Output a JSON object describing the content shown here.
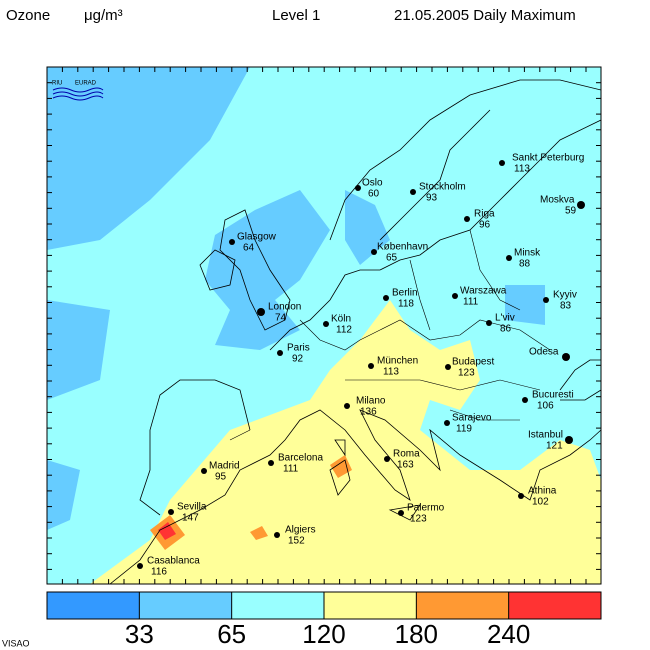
{
  "header": {
    "quantity": "Ozone",
    "unit": "μg/m³",
    "level": "Level  1",
    "date": "21.05.2005 Daily Maximum"
  },
  "logo": [
    "RIU",
    "EURAD"
  ],
  "footer": "VISAO",
  "legend": {
    "colors": [
      "#3399ff",
      "#66ccff",
      "#99ffff",
      "#ffff99",
      "#ff9933",
      "#ff3333"
    ],
    "ticks": [
      33,
      65,
      120,
      180,
      240
    ]
  },
  "cities": [
    {
      "name": "Sankt Peterburg",
      "value": 113
    },
    {
      "name": "Moskva",
      "value": 59
    },
    {
      "name": "Oslo",
      "value": 60
    },
    {
      "name": "Stockholm",
      "value": 93
    },
    {
      "name": "Riga",
      "value": 96
    },
    {
      "name": "Glasgow",
      "value": 64
    },
    {
      "name": "København",
      "value": 65
    },
    {
      "name": "Minsk",
      "value": 88
    },
    {
      "name": "Berlin",
      "value": 118
    },
    {
      "name": "Warszawa",
      "value": 111
    },
    {
      "name": "Kyyiv",
      "value": 83
    },
    {
      "name": "London",
      "value": 74
    },
    {
      "name": "Köln",
      "value": 112
    },
    {
      "name": "L'viv",
      "value": 86
    },
    {
      "name": "Paris",
      "value": 92
    },
    {
      "name": "Odesa"
    },
    {
      "name": "München",
      "value": 113
    },
    {
      "name": "Budapest",
      "value": 123
    },
    {
      "name": "Bucuresti",
      "value": 106
    },
    {
      "name": "Milano",
      "value": 136
    },
    {
      "name": "Sarajevo",
      "value": 119
    },
    {
      "name": "Istanbul",
      "value": 121
    },
    {
      "name": "Roma",
      "value": 163
    },
    {
      "name": "Madrid",
      "value": 95
    },
    {
      "name": "Barcelona",
      "value": 111
    },
    {
      "name": "Athina",
      "value": 102
    },
    {
      "name": "Sevilla",
      "value": 147
    },
    {
      "name": "Palermo",
      "value": 123
    },
    {
      "name": "Algiers",
      "value": 152
    },
    {
      "name": "Casablanca",
      "value": 116
    }
  ]
}
